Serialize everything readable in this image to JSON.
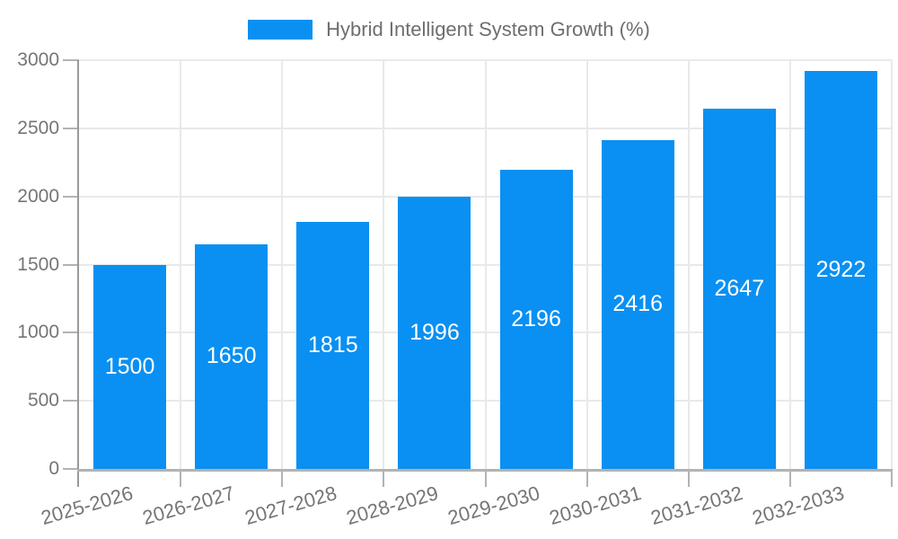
{
  "page": {
    "background": "#ffffff"
  },
  "legend": {
    "label": "Hybrid Intelligent System Growth (%)"
  },
  "colors": {
    "bar": "#0a90f2",
    "grid": "#e9e9e9",
    "y_axis_line": "#999999",
    "x_axis_line": "#b3b3b3",
    "tick": "#b3b3b3",
    "axis_label": "#757575",
    "bar_label": "#ffffff",
    "legend_text": "#6e6e6e"
  },
  "chart_data": {
    "type": "bar",
    "title": "Hybrid Intelligent System Growth (%)",
    "categories": [
      "2025-2026",
      "2026-2027",
      "2027-2028",
      "2028-2029",
      "2029-2030",
      "2030-2031",
      "2031-2032",
      "2032-2033"
    ],
    "values": [
      1500,
      1650,
      1815,
      1996,
      2196,
      2416,
      2647,
      2922
    ],
    "xlabel": "",
    "ylabel": "",
    "ylim": [
      0,
      3000
    ],
    "yticks": [
      0,
      500,
      1000,
      1500,
      2000,
      2500,
      3000
    ],
    "grid": true,
    "legend_position": "top-center",
    "bar_value_labels": "inside-center",
    "x_tick_rotation_deg": -16
  }
}
